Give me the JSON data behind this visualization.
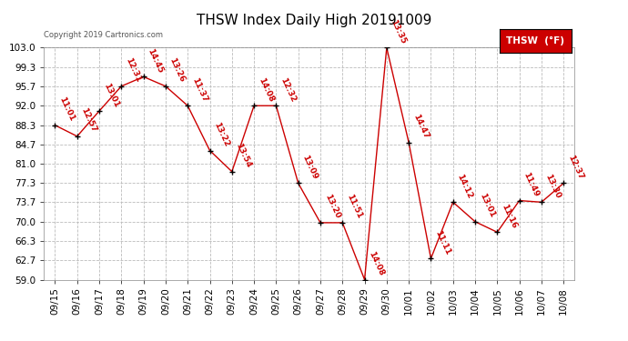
{
  "title": "THSW Index Daily High 20191009",
  "copyright": "Copyright 2019 Cartronics.com",
  "legend_label": "THSW  (°F)",
  "x_labels": [
    "09/15",
    "09/16",
    "09/17",
    "09/18",
    "09/19",
    "09/20",
    "09/21",
    "09/22",
    "09/23",
    "09/24",
    "09/25",
    "09/26",
    "09/27",
    "09/28",
    "09/29",
    "09/30",
    "10/01",
    "10/02",
    "10/03",
    "10/04",
    "10/05",
    "10/06",
    "10/07",
    "10/08"
  ],
  "y_values": [
    88.3,
    86.2,
    91.0,
    95.7,
    97.5,
    95.7,
    92.0,
    83.5,
    79.5,
    92.0,
    92.0,
    77.3,
    69.8,
    69.8,
    59.0,
    103.0,
    85.0,
    63.0,
    73.7,
    70.0,
    68.0,
    74.0,
    73.7,
    77.3
  ],
  "annotations": [
    "11:01",
    "12:57",
    "13:01",
    "12:31",
    "14:45",
    "13:26",
    "11:37",
    "13:22",
    "13:54",
    "14:08",
    "12:32",
    "13:09",
    "13:20",
    "11:51",
    "14:08",
    "13:35",
    "14:47",
    "11:11",
    "14:12",
    "13:01",
    "11:16",
    "11:49",
    "13:30",
    "12:37"
  ],
  "y_ticks": [
    59.0,
    62.7,
    66.3,
    70.0,
    73.7,
    77.3,
    81.0,
    84.7,
    88.3,
    92.0,
    95.7,
    99.3,
    103.0
  ],
  "ylim": [
    59.0,
    103.0
  ],
  "line_color": "#cc0000",
  "marker_color": "#000000",
  "bg_color": "#ffffff",
  "grid_color": "#bbbbbb",
  "title_fontsize": 11,
  "annotation_fontsize": 6.5,
  "tick_fontsize": 7.5,
  "legend_bg": "#cc0000",
  "legend_text_color": "#ffffff"
}
